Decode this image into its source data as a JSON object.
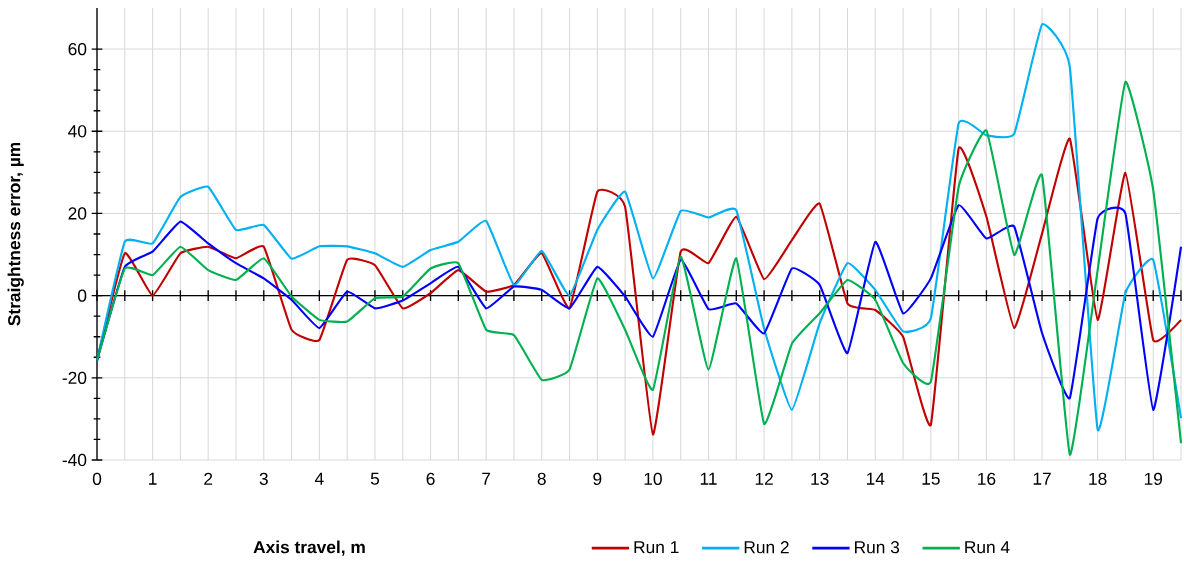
{
  "chart_data": {
    "type": "line",
    "xlabel": "Axis travel, m",
    "ylabel": "Straightness error, µm",
    "x": [
      0,
      0.5,
      1,
      1.5,
      2,
      2.5,
      3,
      3.5,
      4,
      4.5,
      5,
      5.5,
      6,
      6.5,
      7,
      7.5,
      8,
      8.5,
      9,
      9.5,
      10,
      10.5,
      11,
      11.5,
      12,
      12.5,
      13,
      13.5,
      14,
      14.5,
      15,
      15.5,
      16,
      16.5,
      17,
      17.5,
      18,
      18.5,
      19,
      19.5
    ],
    "series": [
      {
        "name": "Run 1",
        "color": "#c00000",
        "values": [
          -15.8,
          10.3,
          0,
          10.3,
          11.9,
          9.1,
          11.9,
          -8.3,
          -10.8,
          8.7,
          7.4,
          -3.1,
          0.6,
          6.2,
          1,
          2.6,
          10.3,
          -3.1,
          25.3,
          21.6,
          -33.8,
          10.7,
          7.9,
          19.2,
          4,
          13.5,
          22.4,
          -1.9,
          -3.5,
          -10,
          -31.4,
          35.8,
          19.2,
          -7.9,
          15.1,
          38.2,
          -5.9,
          29.9,
          -10.8,
          -5.9
        ]
      },
      {
        "name": "Run 2",
        "color": "#00b0f0",
        "values": [
          -15.8,
          13.1,
          12.7,
          24,
          26.5,
          16,
          17.2,
          9,
          12,
          12,
          10.3,
          7,
          11.1,
          13.1,
          18.2,
          2.6,
          10.9,
          0,
          16,
          25.3,
          4.2,
          20.6,
          19,
          20.8,
          -8,
          -27.8,
          -6.7,
          7.9,
          1.4,
          -8.7,
          -5.5,
          41.9,
          39,
          39.4,
          66,
          55.6,
          -32.6,
          0.6,
          8.7,
          -29.8
        ]
      },
      {
        "name": "Run 3",
        "color": "#0000ff",
        "values": [
          -15.8,
          7,
          10.7,
          18,
          12.7,
          7.9,
          4.2,
          -1,
          -7.9,
          1,
          -3.1,
          -1.2,
          3,
          7,
          -3.1,
          2.2,
          1.4,
          -3.1,
          7,
          -0.2,
          -10,
          8.7,
          -3.3,
          -1.9,
          -9.2,
          6.6,
          2.6,
          -14,
          13.1,
          -4.3,
          4.2,
          22,
          13.9,
          16.8,
          -9.1,
          -24.9,
          18.8,
          20,
          -27.8,
          11.9
        ]
      },
      {
        "name": "Run 4",
        "color": "#00b050",
        "values": [
          -15.8,
          6.6,
          5,
          11.9,
          6.2,
          3.8,
          9.1,
          -0.2,
          -5.9,
          -6.3,
          -0.6,
          -0.2,
          6.6,
          7.9,
          -8.3,
          -9.6,
          -20.5,
          -18,
          4.2,
          -8.3,
          -22.9,
          9.5,
          -18,
          9.1,
          -31.2,
          -11.7,
          -4.3,
          3.8,
          -1,
          -16.4,
          -20.9,
          26.5,
          40.2,
          9.9,
          29.3,
          -38.7,
          6.2,
          52,
          25.7,
          -35.9
        ]
      }
    ],
    "xlim": [
      0,
      19.5
    ],
    "ylim": [
      -40,
      70
    ],
    "xticks": [
      0,
      {
        "value": 0.5,
        "label": null
      },
      1,
      {
        "value": 1.5,
        "label": null
      },
      2,
      {
        "value": 2.5,
        "label": null
      },
      3,
      {
        "value": 3.5,
        "label": null
      },
      4,
      {
        "value": 4.5,
        "label": null
      },
      5,
      {
        "value": 5.5,
        "label": null
      },
      6,
      {
        "value": 6.5,
        "label": null
      },
      7,
      {
        "value": 7.5,
        "label": null
      },
      8,
      {
        "value": 8.5,
        "label": null
      },
      9,
      {
        "value": 9.5,
        "label": null
      },
      10,
      {
        "value": 10.5,
        "label": null
      },
      11,
      {
        "value": 11.5,
        "label": null
      },
      12,
      {
        "value": 12.5,
        "label": null
      },
      13,
      {
        "value": 13.5,
        "label": null
      },
      14,
      {
        "value": 14.5,
        "label": null
      },
      15,
      {
        "value": 15.5,
        "label": null
      },
      16,
      {
        "value": 16.5,
        "label": null
      },
      17,
      {
        "value": 17.5,
        "label": null
      },
      18,
      {
        "value": 18.5,
        "label": null
      },
      19,
      {
        "value": 19.5,
        "label": null
      }
    ],
    "yticks": [
      -40,
      -20,
      0,
      20,
      40,
      60
    ],
    "grid": true,
    "legend": "bottom"
  }
}
